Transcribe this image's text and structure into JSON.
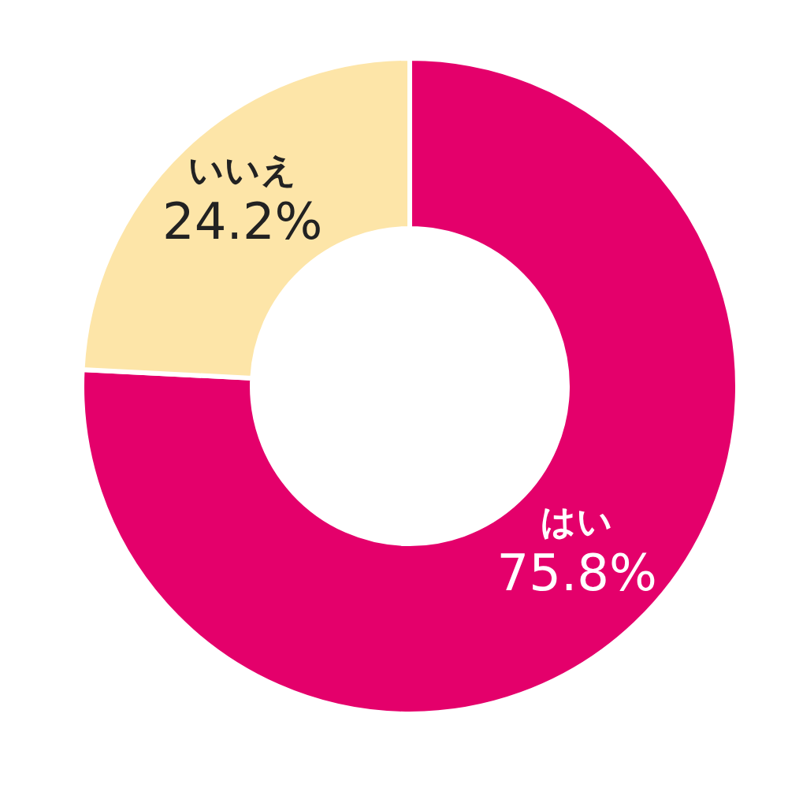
{
  "chart_data": {
    "type": "donut",
    "categories": [
      "はい",
      "いいえ"
    ],
    "values": [
      75.8,
      24.2
    ],
    "colors": [
      "#e4006b",
      "#fde5a8"
    ],
    "value_labels": [
      "75.8%",
      "24.2%"
    ],
    "legend": false
  }
}
